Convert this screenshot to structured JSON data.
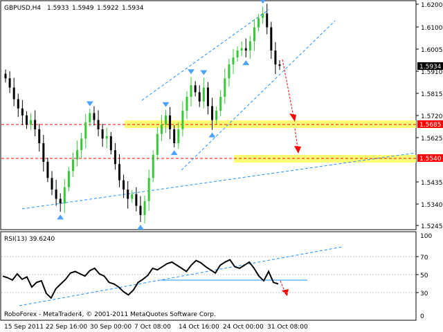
{
  "header": {
    "symbol_label": "GBPUSD,H4",
    "ohlc": [
      "1.5933",
      "1.5949",
      "1.5922",
      "1.5934"
    ]
  },
  "price_axis": {
    "ticks": [
      "1.6200",
      "1.6100",
      "1.6005",
      "1.5910",
      "1.5815",
      "1.5720",
      "1.5625",
      "1.5435",
      "1.5340",
      "1.5245"
    ],
    "current_price": "1.5934",
    "marked_levels": [
      "1.5685",
      "1.5540"
    ]
  },
  "rsi_panel": {
    "label": "RSI(13) 39.6240",
    "ticks": [
      "100",
      "70",
      "50",
      "30",
      "0"
    ]
  },
  "time_axis": {
    "labels": [
      "15 Sep 2011",
      "22 Sep 16:00",
      "30 Sep 00:00",
      "7 Oct 08:00",
      "14 Oct 16:00",
      "24 Oct 00:00",
      "31 Oct 08:00"
    ]
  },
  "footer": {
    "copyright": "RoboForex - MetaTrader4, © 2001-2011 MetaQuotes Software Corp."
  },
  "colors": {
    "bull_candle": "#37c837",
    "bear_candle": "#000000",
    "fractal_arrow": "#4aa3ff",
    "trend_line": "#1e90ff",
    "level_band": "#ffff66",
    "level_line": "#ff0000",
    "rsi_line": "#000000"
  },
  "chart_data": [
    {
      "type": "candlestick",
      "title": "GBPUSD,H4",
      "ylim": [
        1.5245,
        1.62
      ],
      "price_series": [
        1.588,
        1.584,
        1.579,
        1.575,
        1.572,
        1.568,
        1.57,
        1.566,
        1.56,
        1.552,
        1.545,
        1.54,
        1.536,
        1.534,
        1.541,
        1.548,
        1.553,
        1.557,
        1.562,
        1.569,
        1.573,
        1.57,
        1.566,
        1.562,
        1.563,
        1.557,
        1.551,
        1.544,
        1.54,
        1.536,
        1.538,
        1.533,
        1.529,
        1.535,
        1.545,
        1.555,
        1.564,
        1.568,
        1.572,
        1.566,
        1.56,
        1.566,
        1.574,
        1.58,
        1.585,
        1.582,
        1.578,
        1.584,
        1.576,
        1.57,
        1.574,
        1.58,
        1.588,
        1.594,
        1.597,
        1.6,
        1.601,
        1.6,
        1.604,
        1.61,
        1.614,
        1.616,
        1.61,
        1.6,
        1.594,
        1.5934
      ],
      "current_price": 1.5934,
      "marked_levels": [
        1.5685,
        1.554
      ]
    },
    {
      "type": "line",
      "title": "RSI(13) 39.6240",
      "ylim": [
        0,
        100
      ],
      "levels": [
        70,
        50,
        30
      ],
      "values": [
        52,
        50,
        47,
        55,
        48,
        51,
        38,
        44,
        46,
        30,
        24,
        36,
        42,
        48,
        56,
        58,
        55,
        52,
        59,
        62,
        55,
        52,
        44,
        42,
        38,
        32,
        28,
        34,
        44,
        48,
        53,
        62,
        60,
        64,
        68,
        70,
        66,
        62,
        58,
        66,
        72,
        69,
        64,
        60,
        56,
        66,
        70,
        73,
        64,
        62,
        66,
        70,
        62,
        52,
        46,
        58,
        44,
        42
      ]
    }
  ]
}
